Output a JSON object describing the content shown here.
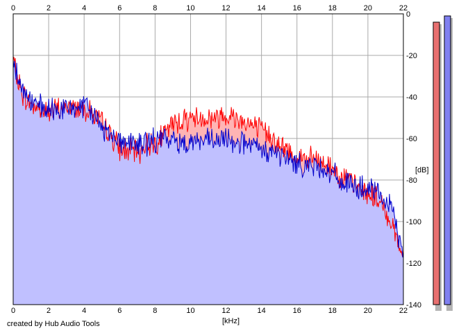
{
  "footer_text": "created by Hub Audio Tools",
  "chart_data": {
    "type": "area",
    "xlabel": "[kHz]",
    "ylabel": "[dB]",
    "xlim": [
      0,
      22
    ],
    "ylim": [
      -140,
      0
    ],
    "xticks": [
      0,
      2,
      4,
      6,
      8,
      10,
      12,
      14,
      16,
      18,
      20,
      22
    ],
    "yticks": [
      0,
      -20,
      -40,
      -60,
      -80,
      -100,
      -120,
      -140
    ],
    "grid": true,
    "x": [
      0,
      0.25,
      0.5,
      0.75,
      1,
      1.5,
      2,
      2.5,
      3,
      3.5,
      4,
      4.5,
      5,
      5.5,
      6,
      6.5,
      7,
      7.5,
      8,
      8.5,
      9,
      9.5,
      10,
      10.5,
      11,
      11.5,
      12,
      12.5,
      13,
      13.5,
      14,
      14.5,
      15,
      15.5,
      16,
      16.5,
      17,
      17.5,
      18,
      18.5,
      19,
      19.5,
      20,
      20.5,
      21,
      21.5,
      22
    ],
    "series": [
      {
        "color": "#ff0000",
        "fill": "#ffb4b4",
        "values": [
          -22,
          -32,
          -38,
          -42,
          -43,
          -46,
          -47,
          -46,
          -45,
          -45,
          -45,
          -48,
          -53,
          -58,
          -65,
          -66,
          -67,
          -63,
          -62,
          -58,
          -53,
          -51,
          -50,
          -50,
          -50,
          -50,
          -48,
          -50,
          -51,
          -54,
          -56,
          -58,
          -64,
          -66,
          -69,
          -70,
          -70,
          -72,
          -74,
          -78,
          -81,
          -84,
          -86,
          -89,
          -95,
          -104,
          -118
        ]
      },
      {
        "color": "#0000cc",
        "fill": "#c0c0ff",
        "values": [
          -18,
          -30,
          -36,
          -40,
          -42,
          -45,
          -47,
          -46,
          -46,
          -45,
          -45,
          -48,
          -55,
          -57,
          -61,
          -62,
          -63,
          -62,
          -61,
          -60,
          -61,
          -62,
          -61,
          -61,
          -61,
          -62,
          -60,
          -61,
          -62,
          -64,
          -66,
          -66,
          -68,
          -70,
          -72,
          -73,
          -73,
          -74,
          -77,
          -81,
          -82,
          -84,
          -85,
          -86,
          -90,
          -98,
          -117
        ]
      }
    ],
    "meters": [
      {
        "color": "#e87070",
        "level_db": -4
      },
      {
        "color": "#8080f0",
        "level_db": -1
      }
    ]
  }
}
